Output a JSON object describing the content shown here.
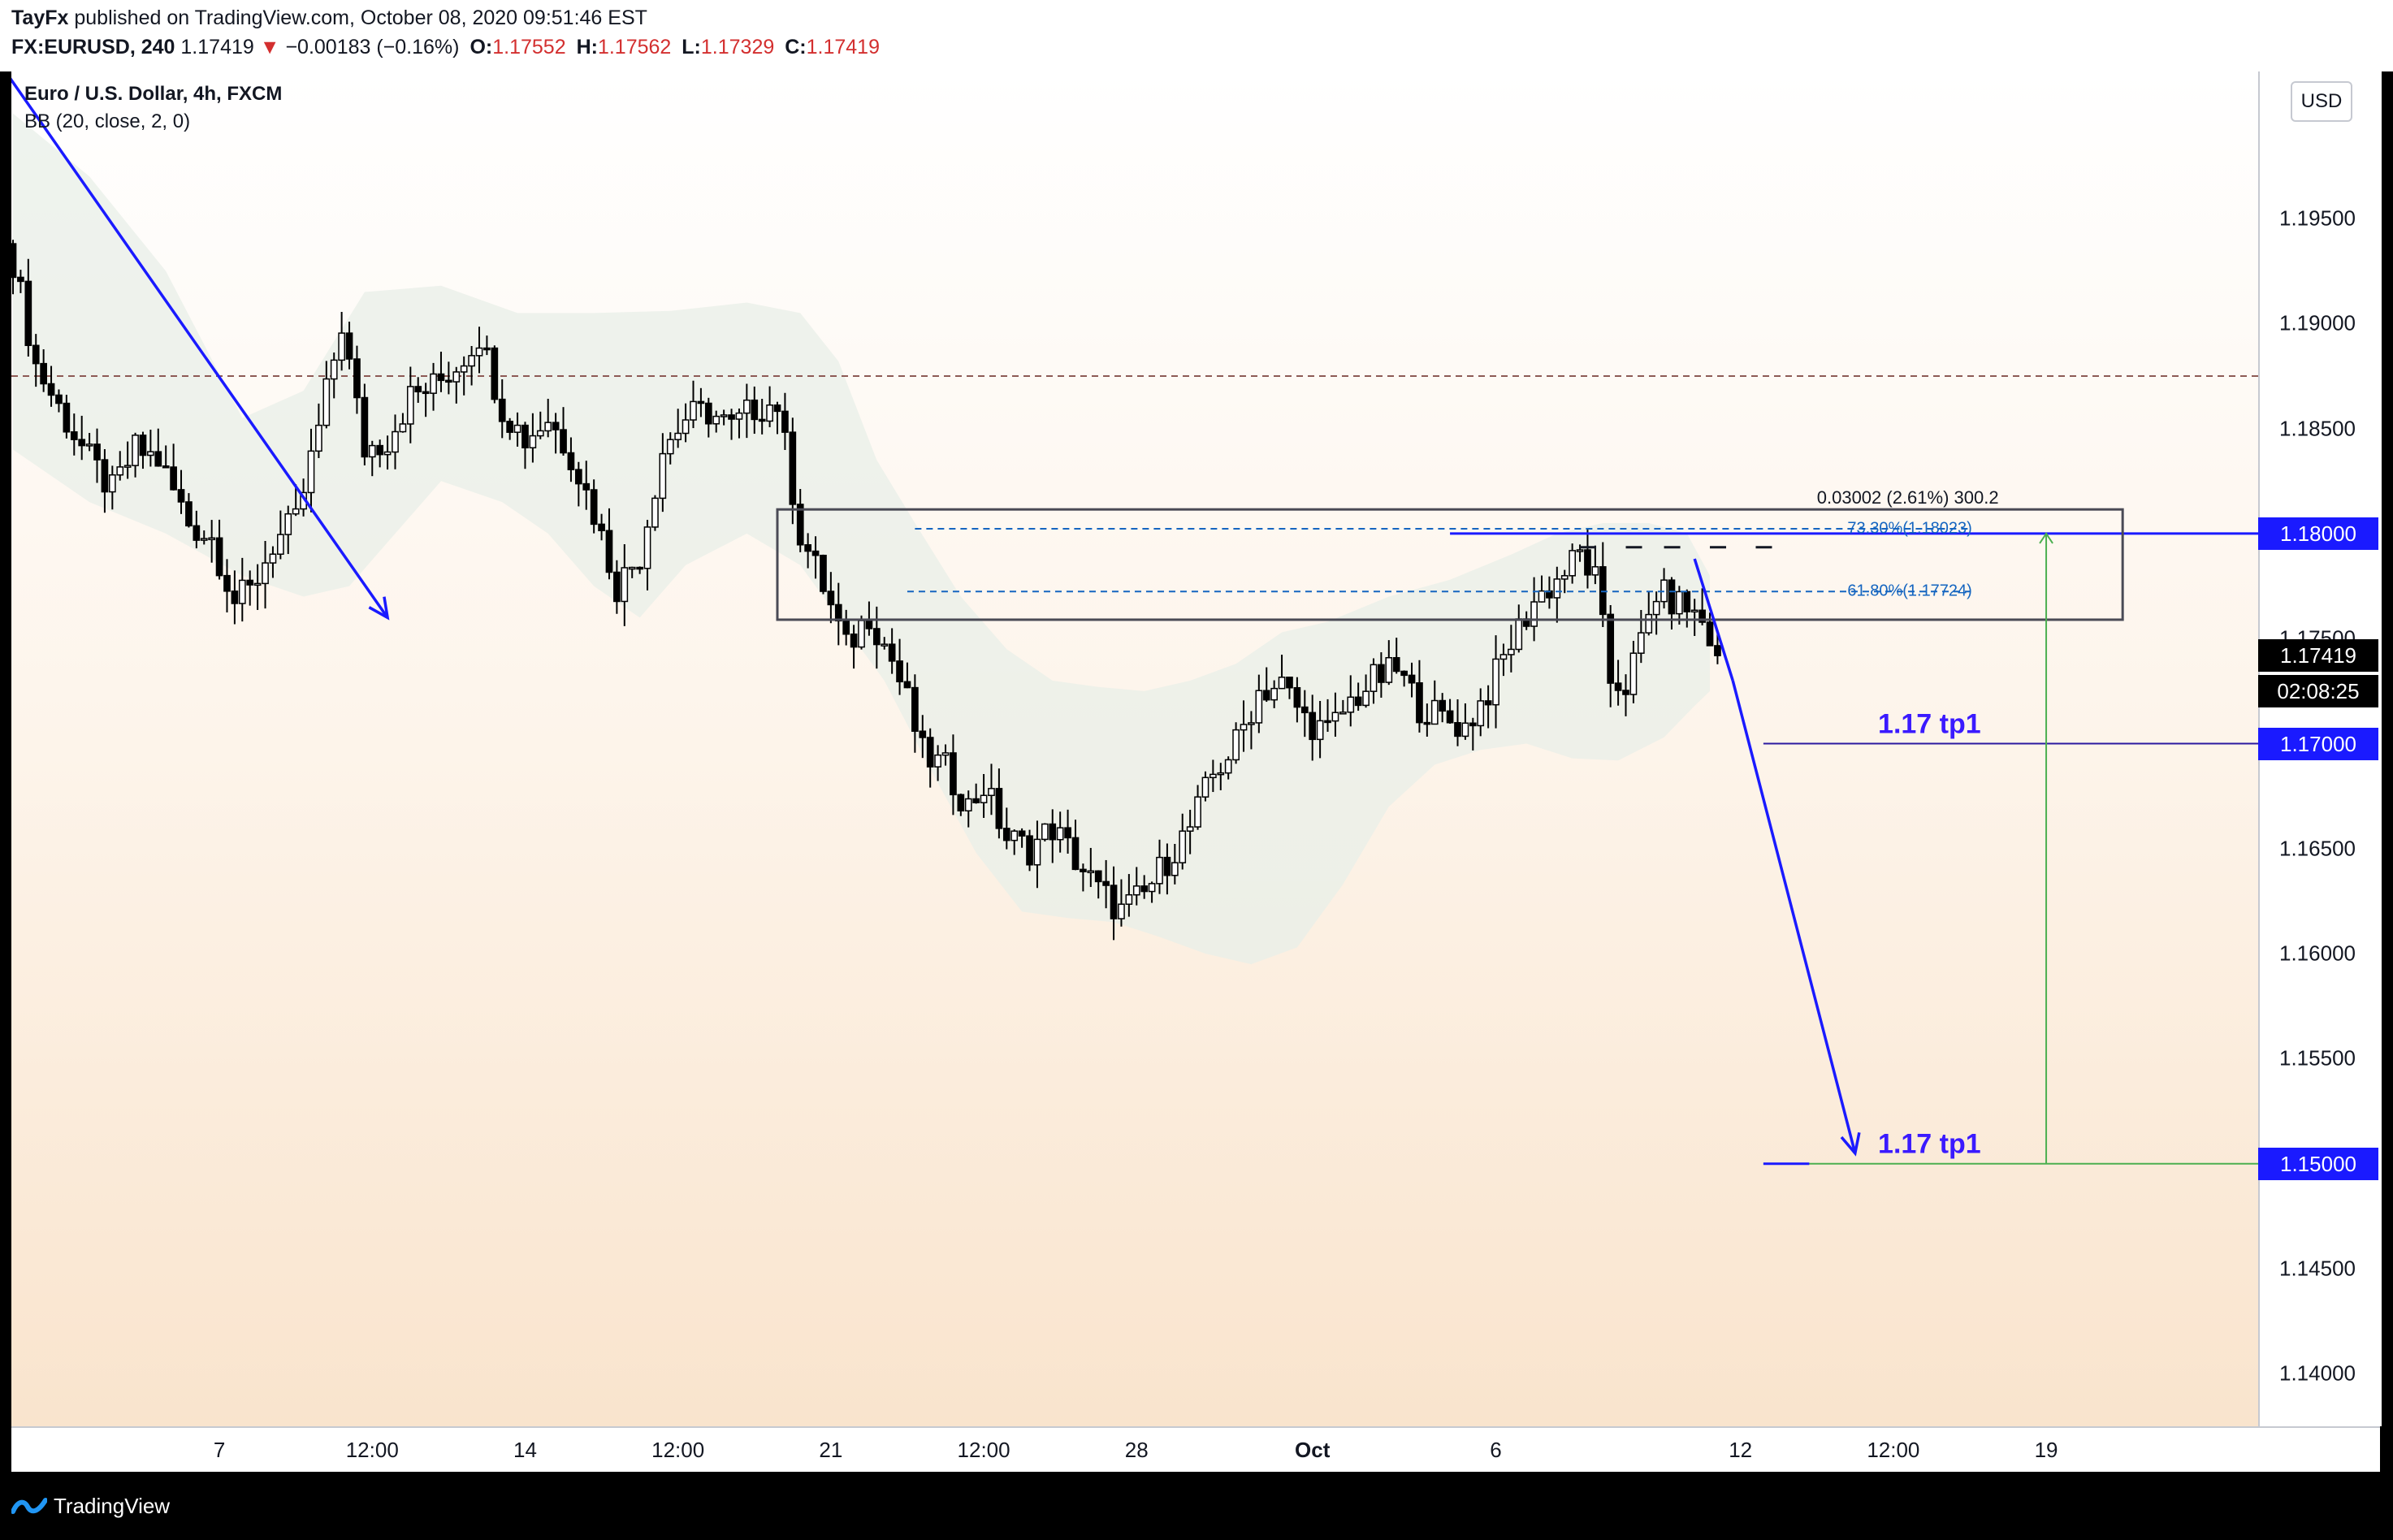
{
  "header": {
    "author": "TayFx",
    "published_text": " published on TradingView.com, October 08, 2020 09:51:46 EST",
    "symbol": "FX:EURUSD, 240",
    "last": "1.17419",
    "change_arrow": "▼",
    "change": "−0.00183 (−0.16%)",
    "o_label": "O:",
    "o_value": "1.17552",
    "h_label": "H:",
    "h_value": "1.17562",
    "l_label": "L:",
    "l_value": "1.17329",
    "c_label": "C:",
    "c_value": "1.17419"
  },
  "legend": {
    "title": "Euro / U.S. Dollar, 4h, FXCM",
    "indicator": "BB (20, close, 2, 0)"
  },
  "currency_button": "USD",
  "annotations": {
    "tp_upper": "1.17 tp1",
    "tp_lower": "1.17 tp1",
    "measure": "0.03002 (2.61%) 300.2",
    "fib_733": "73.30%(1.18023)",
    "fib_618": "61.80%(1.17724)"
  },
  "price_tags": {
    "level_118": "1.18000",
    "current": "1.17419",
    "countdown": "02:08:25",
    "level_117": "1.17000",
    "level_115": "1.15000"
  },
  "footer": {
    "brand": "TradingView"
  },
  "colors": {
    "blue_line": "#1a1aff",
    "candle": "#000000",
    "band_fill": "#e8efe8",
    "green_line": "#4caf50",
    "fib_blue": "#1565c0",
    "down_red": "#d32f2f"
  },
  "chart_data": {
    "type": "candlestick",
    "symbol": "EURUSD",
    "timeframe": "4h",
    "y_range": [
      1.1375,
      1.202
    ],
    "y_ticks": [
      "1.19500",
      "1.19000",
      "1.18500",
      "1.18000",
      "1.17500",
      "1.17000",
      "1.16500",
      "1.16000",
      "1.15500",
      "1.15000",
      "1.14500",
      "1.14000"
    ],
    "x_ticks": [
      "7",
      "12:00",
      "14",
      "12:00",
      "21",
      "12:00",
      "28",
      "Oct",
      "6",
      "12",
      "12:00",
      "19"
    ],
    "close_path": [
      [
        0,
        1.193
      ],
      [
        3,
        1.188
      ],
      [
        6,
        1.186
      ],
      [
        10,
        1.1835
      ],
      [
        13,
        1.182
      ],
      [
        16,
        1.184
      ],
      [
        19,
        1.1835
      ],
      [
        23,
        1.1805
      ],
      [
        26,
        1.1798
      ],
      [
        29,
        1.1768
      ],
      [
        31,
        1.1772
      ],
      [
        34,
        1.1795
      ],
      [
        37,
        1.1805
      ],
      [
        40,
        1.185
      ],
      [
        43,
        1.19
      ],
      [
        46,
        1.184
      ],
      [
        49,
        1.1845
      ],
      [
        52,
        1.1865
      ],
      [
        55,
        1.187
      ],
      [
        58,
        1.188
      ],
      [
        61,
        1.1895
      ],
      [
        64,
        1.186
      ],
      [
        67,
        1.1845
      ],
      [
        70,
        1.1855
      ],
      [
        73,
        1.1838
      ],
      [
        76,
        1.181
      ],
      [
        79,
        1.1775
      ],
      [
        82,
        1.179
      ],
      [
        85,
        1.184
      ],
      [
        88,
        1.1855
      ],
      [
        91,
        1.1858
      ],
      [
        94,
        1.185
      ],
      [
        97,
        1.186
      ],
      [
        100,
        1.1862
      ],
      [
        103,
        1.18
      ],
      [
        106,
        1.1775
      ],
      [
        109,
        1.1745
      ],
      [
        112,
        1.1762
      ],
      [
        115,
        1.174
      ],
      [
        117,
        1.172
      ],
      [
        119,
        1.1695
      ],
      [
        122,
        1.1688
      ],
      [
        125,
        1.167
      ],
      [
        127,
        1.168
      ],
      [
        130,
        1.1655
      ],
      [
        133,
        1.165
      ],
      [
        136,
        1.166
      ],
      [
        139,
        1.1645
      ],
      [
        142,
        1.163
      ],
      [
        145,
        1.162
      ],
      [
        148,
        1.1628
      ],
      [
        151,
        1.1645
      ],
      [
        154,
        1.166
      ],
      [
        157,
        1.1685
      ],
      [
        160,
        1.17
      ],
      [
        163,
        1.1725
      ],
      [
        166,
        1.1728
      ],
      [
        169,
        1.1712
      ],
      [
        172,
        1.1705
      ],
      [
        175,
        1.172
      ],
      [
        178,
        1.173
      ],
      [
        181,
        1.1735
      ],
      [
        184,
        1.1718
      ],
      [
        187,
        1.1712
      ],
      [
        190,
        1.1708
      ],
      [
        193,
        1.1725
      ],
      [
        196,
        1.1748
      ],
      [
        199,
        1.1768
      ],
      [
        202,
        1.1778
      ],
      [
        205,
        1.179
      ],
      [
        207,
        1.1778
      ],
      [
        209,
        1.173
      ],
      [
        211,
        1.1728
      ],
      [
        213,
        1.1748
      ],
      [
        215,
        1.1772
      ],
      [
        217,
        1.1768
      ],
      [
        219,
        1.1765
      ],
      [
        221,
        1.1758
      ],
      [
        223,
        1.1742
      ]
    ],
    "bb_upper": [
      [
        0,
        1.2
      ],
      [
        10,
        1.197
      ],
      [
        20,
        1.1925
      ],
      [
        30,
        1.1855
      ],
      [
        38,
        1.1868
      ],
      [
        46,
        1.1915
      ],
      [
        56,
        1.1918
      ],
      [
        66,
        1.1905
      ],
      [
        76,
        1.1905
      ],
      [
        86,
        1.1906
      ],
      [
        96,
        1.191
      ],
      [
        103,
        1.1905
      ],
      [
        108,
        1.1882
      ],
      [
        113,
        1.1835
      ],
      [
        118,
        1.1805
      ],
      [
        124,
        1.177
      ],
      [
        130,
        1.1745
      ],
      [
        136,
        1.173
      ],
      [
        142,
        1.1727
      ],
      [
        148,
        1.1725
      ],
      [
        154,
        1.173
      ],
      [
        160,
        1.1738
      ],
      [
        166,
        1.1753
      ],
      [
        172,
        1.1758
      ],
      [
        180,
        1.177
      ],
      [
        188,
        1.1778
      ],
      [
        196,
        1.179
      ],
      [
        202,
        1.18
      ],
      [
        208,
        1.1805
      ],
      [
        214,
        1.1805
      ],
      [
        219,
        1.18
      ],
      [
        222,
        1.178
      ]
    ],
    "bb_lower": [
      [
        0,
        1.184
      ],
      [
        10,
        1.1815
      ],
      [
        20,
        1.18
      ],
      [
        30,
        1.178
      ],
      [
        38,
        1.177
      ],
      [
        44,
        1.1775
      ],
      [
        50,
        1.18
      ],
      [
        56,
        1.1825
      ],
      [
        64,
        1.1815
      ],
      [
        70,
        1.18
      ],
      [
        76,
        1.1775
      ],
      [
        82,
        1.176
      ],
      [
        88,
        1.1785
      ],
      [
        96,
        1.18
      ],
      [
        103,
        1.1785
      ],
      [
        108,
        1.176
      ],
      [
        114,
        1.173
      ],
      [
        120,
        1.1688
      ],
      [
        126,
        1.1648
      ],
      [
        132,
        1.162
      ],
      [
        138,
        1.1617
      ],
      [
        144,
        1.1615
      ],
      [
        150,
        1.1608
      ],
      [
        156,
        1.16
      ],
      [
        162,
        1.1595
      ],
      [
        168,
        1.1603
      ],
      [
        174,
        1.1633
      ],
      [
        180,
        1.167
      ],
      [
        186,
        1.169
      ],
      [
        192,
        1.1697
      ],
      [
        198,
        1.17
      ],
      [
        204,
        1.1693
      ],
      [
        210,
        1.1692
      ],
      [
        216,
        1.1703
      ],
      [
        220,
        1.1718
      ],
      [
        222,
        1.1725
      ]
    ],
    "horizontal_levels": [
      1.18,
      1.17,
      1.15,
      1.1875
    ],
    "fib_levels": [
      {
        "label": "73.30%",
        "value": 1.18023
      },
      {
        "label": "61.80%",
        "value": 1.17724
      }
    ],
    "last_price": 1.17419
  }
}
